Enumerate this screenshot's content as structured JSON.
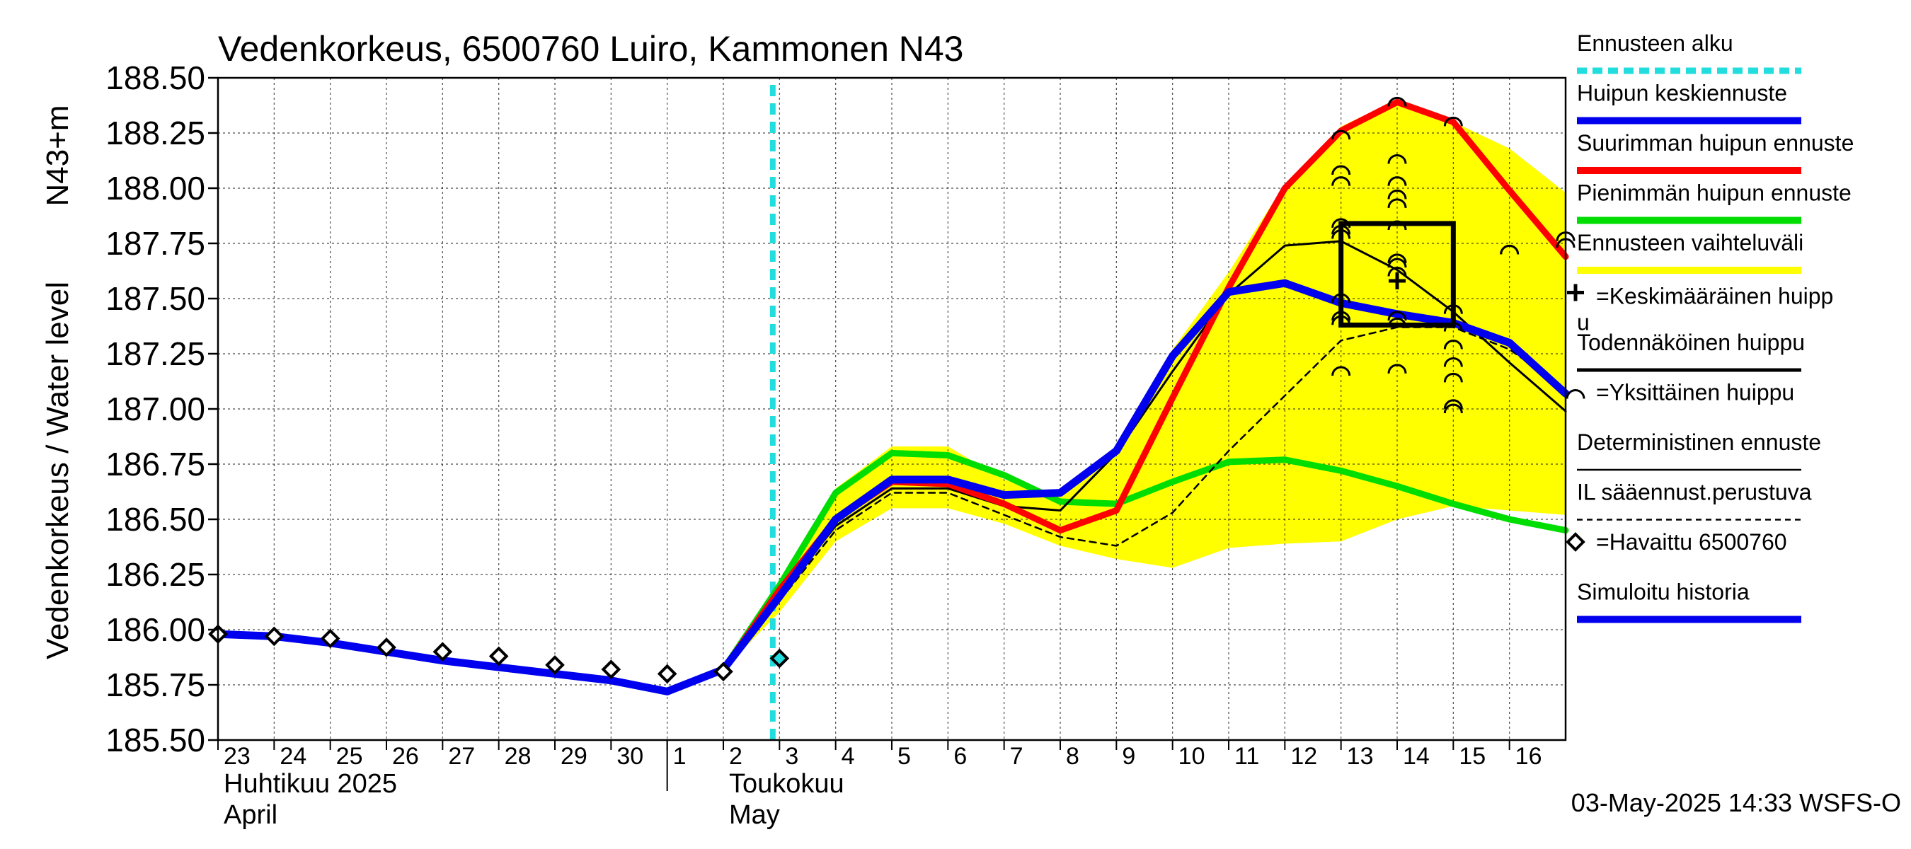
{
  "chart_data": {
    "type": "line",
    "title": "Vedenkorkeus, 6500760 Luiro, Kammonen N43",
    "ylabel": "Vedenkorkeus / Water level",
    "ylabel_unit": "N43+m",
    "ylim": [
      185.5,
      188.5
    ],
    "yticks": [
      "188.50",
      "188.25",
      "188.00",
      "187.75",
      "187.50",
      "187.25",
      "187.00",
      "186.75",
      "186.50",
      "186.25",
      "186.00",
      "185.75",
      "185.50"
    ],
    "x_start": "2025-04-23",
    "x_end": "2025-05-16",
    "xticks": [
      "23",
      "24",
      "25",
      "26",
      "27",
      "28",
      "29",
      "30",
      "1",
      "2",
      "3",
      "4",
      "5",
      "6",
      "7",
      "8",
      "9",
      "10",
      "11",
      "12",
      "13",
      "14",
      "15",
      "16"
    ],
    "month_labels": [
      {
        "fi": "Huhtikuu  2025",
        "en": "April",
        "date": "2025-04-23"
      },
      {
        "fi": "Toukokuu",
        "en": "May",
        "date": "2025-05-02"
      }
    ],
    "grid": true,
    "forecast_start": "2025-05-03",
    "timestamp": "03-May-2025 14:33 WSFS-O",
    "legend": [
      {
        "label": "Ennusteen alku",
        "color": "#22dddd",
        "style": "dashed-thick"
      },
      {
        "label": "Huipun keskiennuste",
        "color": "#0000ee",
        "style": "thick"
      },
      {
        "label": "Suurimman huipun ennuste",
        "color": "#ff0000",
        "style": "thick"
      },
      {
        "label": "Pienimmän huipun ennuste",
        "color": "#00dd00",
        "style": "thick"
      },
      {
        "label": "Ennusteen vaihteluväli",
        "color": "#ffff00",
        "style": "thick"
      },
      {
        "label": "=Keskimääräinen huipp",
        "label2": "u",
        "color": "#000000",
        "style": "plus"
      },
      {
        "label": "Todennäköinen huippu",
        "color": "#000000",
        "style": "thick-black"
      },
      {
        "label": "=Yksittäinen huippu",
        "color": "#000000",
        "style": "arc"
      },
      {
        "label": "Deterministinen ennuste",
        "color": "#000000",
        "style": "thin"
      },
      {
        "label": "IL sääennust.perustuva",
        "color": "#000000",
        "style": "dashed-thin"
      },
      {
        "label": "=Havaittu 6500760",
        "color": "#000000",
        "style": "diamond"
      },
      {
        "label": "Simuloitu historia",
        "color": "#0000ee",
        "style": "thick"
      }
    ],
    "series": [
      {
        "name": "Simuloitu historia",
        "color": "#0000ee",
        "x": [
          "2025-04-23",
          "2025-04-24",
          "2025-04-25",
          "2025-04-26",
          "2025-04-27",
          "2025-04-28",
          "2025-04-29",
          "2025-04-30",
          "2025-05-01",
          "2025-05-02",
          "2025-05-03"
        ],
        "values": [
          185.98,
          185.97,
          185.94,
          185.9,
          185.86,
          185.83,
          185.8,
          185.77,
          185.72,
          185.82,
          186.15
        ]
      },
      {
        "name": "Havaittu 6500760",
        "x": [
          "2025-04-23",
          "2025-04-24",
          "2025-04-25",
          "2025-04-26",
          "2025-04-27",
          "2025-04-28",
          "2025-04-29",
          "2025-04-30",
          "2025-05-01",
          "2025-05-02",
          "2025-05-03"
        ],
        "values": [
          185.98,
          185.97,
          185.96,
          185.92,
          185.9,
          185.88,
          185.84,
          185.82,
          185.8,
          185.81,
          185.87
        ]
      },
      {
        "name": "Ennusteen vaihteluväli",
        "color": "#ffff00",
        "x": [
          "2025-05-02",
          "2025-05-03",
          "2025-05-04",
          "2025-05-05",
          "2025-05-06",
          "2025-05-07",
          "2025-05-08",
          "2025-05-09",
          "2025-05-10",
          "2025-05-11",
          "2025-05-12",
          "2025-05-13",
          "2025-05-14",
          "2025-05-15",
          "2025-05-16",
          "2025-05-17"
        ],
        "upper": [
          185.82,
          186.22,
          186.64,
          186.83,
          186.83,
          186.68,
          186.6,
          186.82,
          187.27,
          187.62,
          188.02,
          188.28,
          188.4,
          188.3,
          188.18,
          187.98
        ],
        "lower": [
          185.82,
          186.08,
          186.4,
          186.55,
          186.55,
          186.48,
          186.38,
          186.32,
          186.28,
          186.37,
          186.39,
          186.4,
          186.5,
          186.56,
          186.54,
          186.52
        ]
      },
      {
        "name": "Pienimmän huipun ennuste",
        "color": "#00dd00",
        "x": [
          "2025-05-02",
          "2025-05-03",
          "2025-05-04",
          "2025-05-05",
          "2025-05-06",
          "2025-05-07",
          "2025-05-08",
          "2025-05-09",
          "2025-05-10",
          "2025-05-11",
          "2025-05-12",
          "2025-05-13",
          "2025-05-14",
          "2025-05-15",
          "2025-05-16",
          "2025-05-17"
        ],
        "values": [
          185.82,
          186.2,
          186.62,
          186.8,
          186.79,
          186.7,
          186.58,
          186.57,
          186.67,
          186.76,
          186.77,
          186.72,
          186.65,
          186.57,
          186.5,
          186.45
        ]
      },
      {
        "name": "Suurimman huipun ennuste",
        "color": "#ff0000",
        "x": [
          "2025-05-02",
          "2025-05-03",
          "2025-05-04",
          "2025-05-05",
          "2025-05-06",
          "2025-05-07",
          "2025-05-08",
          "2025-05-09",
          "2025-05-10",
          "2025-05-11",
          "2025-05-12",
          "2025-05-13",
          "2025-05-14",
          "2025-05-15",
          "2025-05-16",
          "2025-05-17"
        ],
        "values": [
          185.82,
          186.18,
          186.5,
          186.67,
          186.66,
          186.57,
          186.45,
          186.54,
          187.05,
          187.55,
          188.0,
          188.26,
          188.39,
          188.3,
          187.99,
          187.69
        ]
      },
      {
        "name": "Huipun keskiennuste",
        "color": "#0000ee",
        "x": [
          "2025-05-03",
          "2025-05-04",
          "2025-05-05",
          "2025-05-06",
          "2025-05-07",
          "2025-05-08",
          "2025-05-09",
          "2025-05-10",
          "2025-05-11",
          "2025-05-12",
          "2025-05-13",
          "2025-05-14",
          "2025-05-15",
          "2025-05-16",
          "2025-05-17"
        ],
        "values": [
          186.15,
          186.5,
          186.68,
          186.68,
          186.61,
          186.62,
          186.81,
          187.24,
          187.53,
          187.57,
          187.48,
          187.43,
          187.39,
          187.3,
          187.07
        ]
      },
      {
        "name": "Deterministinen ennuste",
        "color": "#000000",
        "x": [
          "2025-05-02",
          "2025-05-03",
          "2025-05-04",
          "2025-05-05",
          "2025-05-06",
          "2025-05-07",
          "2025-05-08",
          "2025-05-09",
          "2025-05-10",
          "2025-05-11",
          "2025-05-12",
          "2025-05-13",
          "2025-05-14",
          "2025-05-15",
          "2025-05-16",
          "2025-05-17"
        ],
        "values": [
          185.82,
          186.15,
          186.47,
          186.64,
          186.64,
          186.56,
          186.54,
          186.8,
          187.17,
          187.52,
          187.74,
          187.76,
          187.63,
          187.44,
          187.21,
          186.99
        ]
      },
      {
        "name": "IL sääennust.perustuva",
        "color": "#000000",
        "x": [
          "2025-05-02",
          "2025-05-03",
          "2025-05-04",
          "2025-05-05",
          "2025-05-06",
          "2025-05-07",
          "2025-05-08",
          "2025-05-09",
          "2025-05-10",
          "2025-05-11",
          "2025-05-12",
          "2025-05-13",
          "2025-05-14",
          "2025-05-15",
          "2025-05-16",
          "2025-05-17"
        ],
        "values": [
          185.82,
          186.13,
          186.45,
          186.62,
          186.62,
          186.52,
          186.42,
          186.38,
          186.53,
          186.81,
          187.06,
          187.31,
          187.37,
          187.37,
          187.27,
          187.09
        ]
      }
    ],
    "probable_peak_box": {
      "x_from": "2025-05-13",
      "x_to": "2025-05-15",
      "y_from": 187.38,
      "y_to": 187.84
    },
    "mean_peak": {
      "x": "2025-05-14",
      "y": 187.58
    },
    "individual_peaks": [
      {
        "x": "2025-05-13",
        "y": 188.24
      },
      {
        "x": "2025-05-13",
        "y": 188.08
      },
      {
        "x": "2025-05-13",
        "y": 188.03
      },
      {
        "x": "2025-05-13",
        "y": 187.84
      },
      {
        "x": "2025-05-13",
        "y": 187.81
      },
      {
        "x": "2025-05-13",
        "y": 187.79
      },
      {
        "x": "2025-05-13",
        "y": 187.5
      },
      {
        "x": "2025-05-13",
        "y": 187.42
      },
      {
        "x": "2025-05-13",
        "y": 187.4
      },
      {
        "x": "2025-05-13",
        "y": 187.17
      },
      {
        "x": "2025-05-14",
        "y": 188.39
      },
      {
        "x": "2025-05-14",
        "y": 188.13
      },
      {
        "x": "2025-05-14",
        "y": 188.03
      },
      {
        "x": "2025-05-14",
        "y": 187.97
      },
      {
        "x": "2025-05-14",
        "y": 187.93
      },
      {
        "x": "2025-05-14",
        "y": 187.83
      },
      {
        "x": "2025-05-14",
        "y": 187.68
      },
      {
        "x": "2025-05-14",
        "y": 187.66
      },
      {
        "x": "2025-05-14",
        "y": 187.62
      },
      {
        "x": "2025-05-14",
        "y": 187.42
      },
      {
        "x": "2025-05-14",
        "y": 187.39
      },
      {
        "x": "2025-05-14",
        "y": 187.18
      },
      {
        "x": "2025-05-15",
        "y": 188.3
      },
      {
        "x": "2025-05-15",
        "y": 187.45
      },
      {
        "x": "2025-05-15",
        "y": 187.37
      },
      {
        "x": "2025-05-15",
        "y": 187.29
      },
      {
        "x": "2025-05-15",
        "y": 187.21
      },
      {
        "x": "2025-05-15",
        "y": 187.14
      },
      {
        "x": "2025-05-15",
        "y": 187.02
      },
      {
        "x": "2025-05-15",
        "y": 187.0
      },
      {
        "x": "2025-05-16",
        "y": 187.72
      },
      {
        "x": "2025-05-16",
        "y": 187.72
      },
      {
        "x": "2025-05-17",
        "y": 187.78
      },
      {
        "x": "2025-05-17",
        "y": 187.75
      }
    ]
  }
}
